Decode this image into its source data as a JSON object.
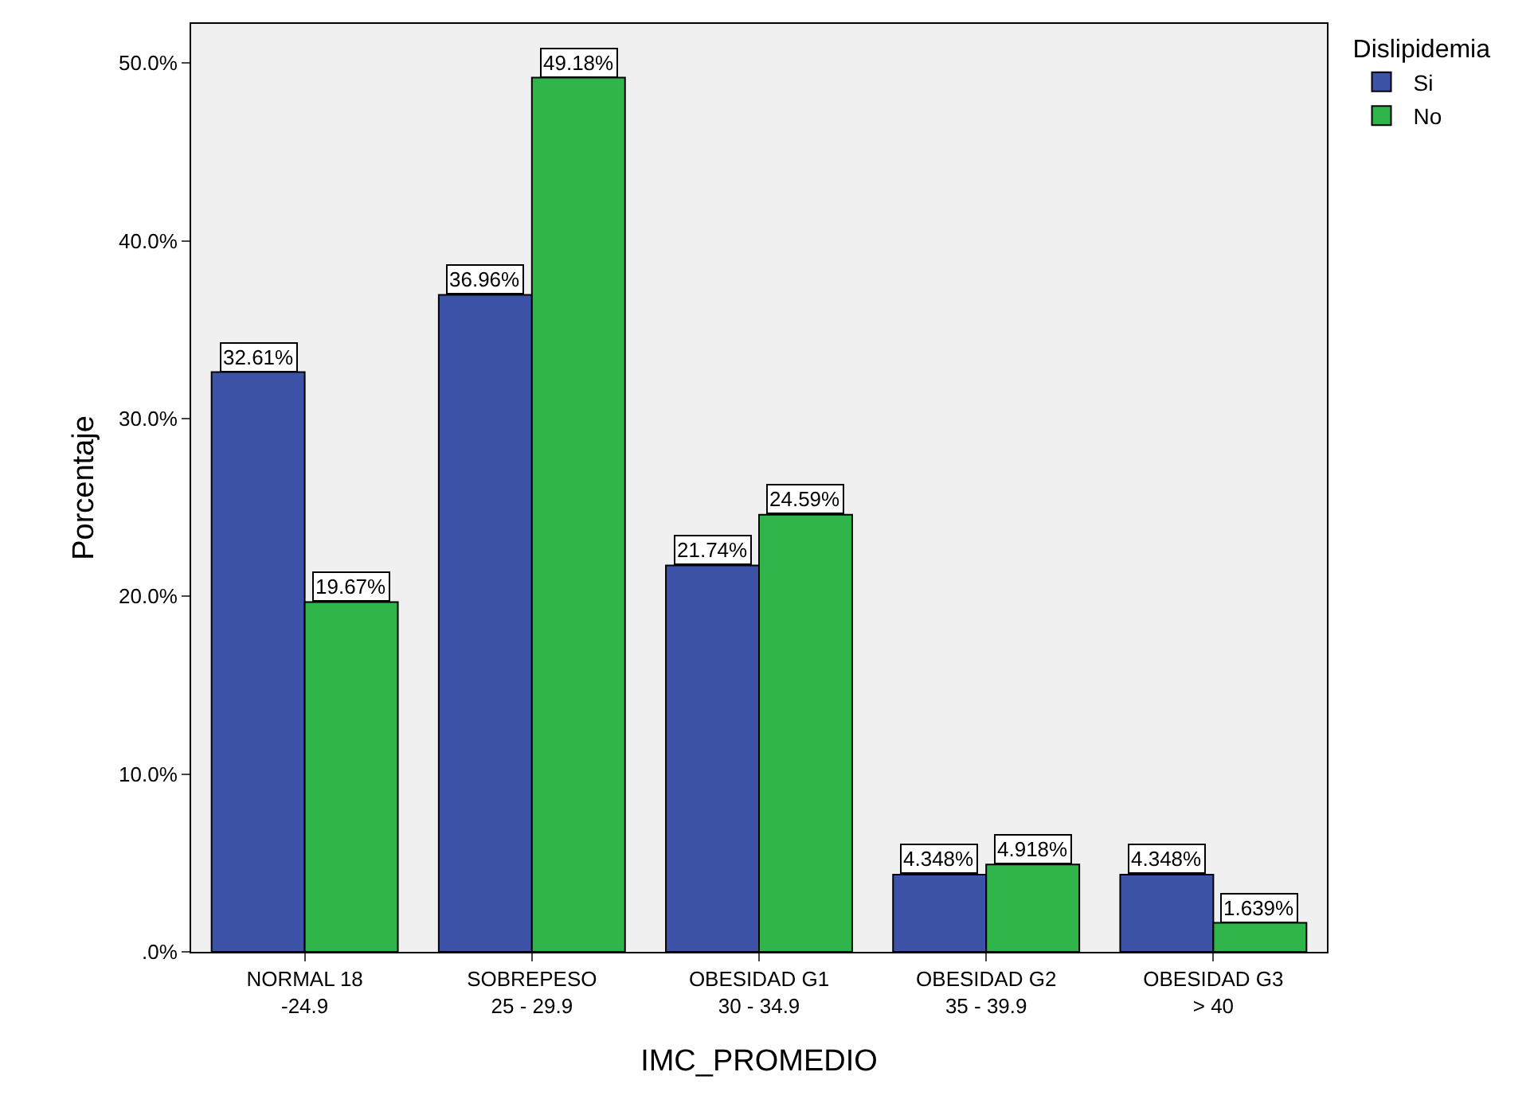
{
  "chart_data": {
    "type": "bar",
    "xlabel": "IMC_PROMEDIO",
    "ylabel": "Porcentaje",
    "legend_title": "Dislipidemia",
    "categories": [
      "NORMAL 18\n-24.9",
      "SOBREPESO\n25 - 29.9",
      "OBESIDAD G1\n30 - 34.9",
      "OBESIDAD G2\n35 - 39.9",
      "OBESIDAD G3\n> 40"
    ],
    "series": [
      {
        "name": "Si",
        "color": "#3d53a8",
        "values": [
          32.61,
          36.96,
          21.74,
          4.348,
          4.348
        ],
        "value_labels": [
          "32.61%",
          "36.96%",
          "21.74%",
          "4.348%",
          "4.348%"
        ]
      },
      {
        "name": "No",
        "color": "#2fb54a",
        "values": [
          19.67,
          49.18,
          24.59,
          4.918,
          1.639
        ],
        "value_labels": [
          "19.67%",
          "49.18%",
          "24.59%",
          "4.918%",
          "1.639%"
        ]
      }
    ],
    "ylim": [
      0,
      52.2
    ],
    "yticks": [
      {
        "value": 0,
        "label": ".0%"
      },
      {
        "value": 10,
        "label": "10.0%"
      },
      {
        "value": 20,
        "label": "20.0%"
      },
      {
        "value": 30,
        "label": "30.0%"
      },
      {
        "value": 40,
        "label": "40.0%"
      },
      {
        "value": 50,
        "label": "50.0%"
      }
    ],
    "grid": false,
    "legend": "top right"
  }
}
